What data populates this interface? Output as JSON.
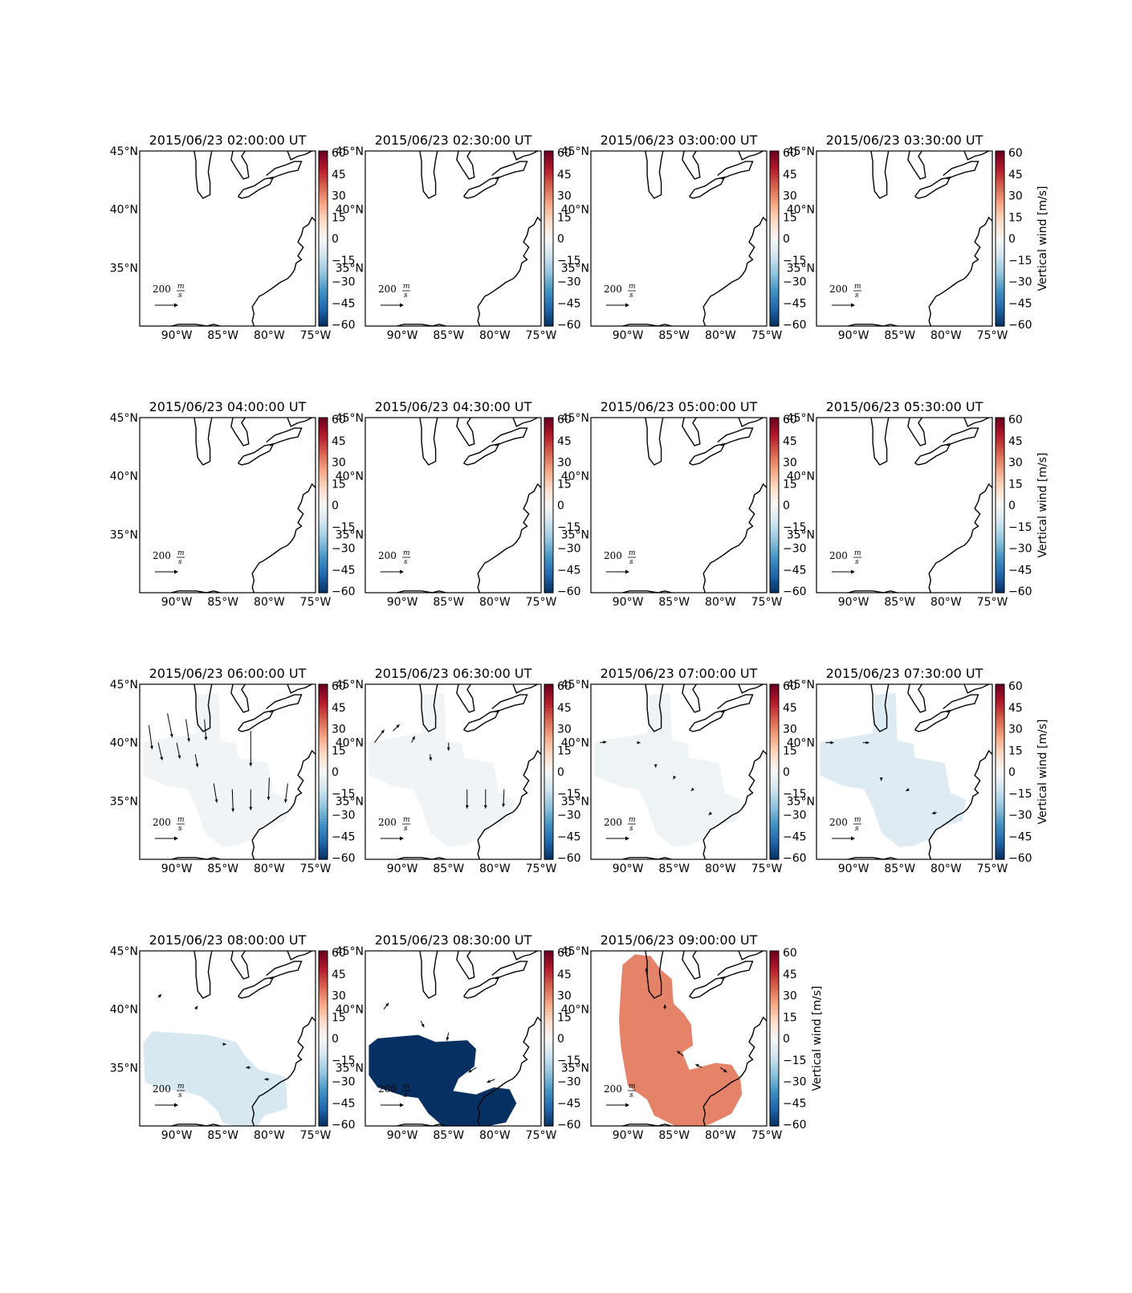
{
  "figure": {
    "panels": [
      {
        "title": "2015/06/23 02:00:00 UT",
        "show_cbar_label": false
      },
      {
        "title": "2015/06/23 02:30:00 UT",
        "show_cbar_label": false
      },
      {
        "title": "2015/06/23 03:00:00 UT",
        "show_cbar_label": false
      },
      {
        "title": "2015/06/23 03:30:00 UT",
        "show_cbar_label": true
      },
      {
        "title": "2015/06/23 04:00:00 UT",
        "show_cbar_label": false
      },
      {
        "title": "2015/06/23 04:30:00 UT",
        "show_cbar_label": false
      },
      {
        "title": "2015/06/23 05:00:00 UT",
        "show_cbar_label": false
      },
      {
        "title": "2015/06/23 05:30:00 UT",
        "show_cbar_label": true
      },
      {
        "title": "2015/06/23 06:00:00 UT",
        "show_cbar_label": false
      },
      {
        "title": "2015/06/23 06:30:00 UT",
        "show_cbar_label": false
      },
      {
        "title": "2015/06/23 07:00:00 UT",
        "show_cbar_label": false
      },
      {
        "title": "2015/06/23 07:30:00 UT",
        "show_cbar_label": true
      },
      {
        "title": "2015/06/23 08:00:00 UT",
        "show_cbar_label": false
      },
      {
        "title": "2015/06/23 08:30:00 UT",
        "show_cbar_label": false
      },
      {
        "title": "2015/06/23 09:00:00 UT",
        "show_cbar_label": true
      }
    ],
    "lon_ticks": [
      "90°W",
      "85°W",
      "80°W",
      "75°W"
    ],
    "lat_ticks": [
      "45°N",
      "40°N",
      "35°N"
    ],
    "colorbar": {
      "label": "Vertical wind [m/s]",
      "ticks": [
        "60",
        "45",
        "30",
        "15",
        "0",
        "−15",
        "−30",
        "−45",
        "−60"
      ],
      "range": [
        -60,
        60
      ],
      "colormap": "RdBu_r"
    },
    "quiver_key": {
      "number": "200",
      "num": "m",
      "den": "s"
    }
  },
  "chart_data": {
    "type": "heatmap",
    "title": "",
    "colorbar_label": "Vertical wind [m/s]",
    "lon_range": [
      -94,
      -75
    ],
    "lat_range": [
      30,
      45
    ],
    "clim": [
      -60,
      60
    ],
    "reference_vector": "200 m/s",
    "panels": [
      {
        "time": "2015/06/23 02:00:00 UT",
        "vertical_wind": null,
        "vectors": []
      },
      {
        "time": "2015/06/23 02:30:00 UT",
        "vertical_wind": null,
        "vectors": []
      },
      {
        "time": "2015/06/23 03:00:00 UT",
        "vertical_wind": null,
        "vectors": []
      },
      {
        "time": "2015/06/23 03:30:00 UT",
        "vertical_wind": null,
        "vectors": []
      },
      {
        "time": "2015/06/23 04:00:00 UT",
        "vertical_wind": null,
        "vectors": []
      },
      {
        "time": "2015/06/23 04:30:00 UT",
        "vertical_wind": null,
        "vectors": []
      },
      {
        "time": "2015/06/23 05:00:00 UT",
        "vertical_wind": null,
        "vectors": []
      },
      {
        "time": "2015/06/23 05:30:00 UT",
        "vertical_wind": null,
        "vectors": []
      },
      {
        "time": "2015/06/23 06:00:00 UT",
        "vertical_wind": -2,
        "region": "A",
        "vectors": [
          {
            "lon": -93,
            "lat": 41.5,
            "u": 20,
            "v": -150
          },
          {
            "lon": -91,
            "lat": 42.5,
            "u": 30,
            "v": -150
          },
          {
            "lon": -89,
            "lat": 42,
            "u": 20,
            "v": -140
          },
          {
            "lon": -87,
            "lat": 42,
            "u": 10,
            "v": -130
          },
          {
            "lon": -92,
            "lat": 40,
            "u": 25,
            "v": -110
          },
          {
            "lon": -90,
            "lat": 40,
            "u": 20,
            "v": -100
          },
          {
            "lon": -88,
            "lat": 39,
            "u": 15,
            "v": -80
          },
          {
            "lon": -86,
            "lat": 36.5,
            "u": 20,
            "v": -120
          },
          {
            "lon": -84,
            "lat": 36,
            "u": 5,
            "v": -140
          },
          {
            "lon": -82,
            "lat": 41,
            "u": 0,
            "v": -220
          },
          {
            "lon": -82,
            "lat": 36,
            "u": 0,
            "v": -130
          },
          {
            "lon": -80,
            "lat": 37,
            "u": -5,
            "v": -140
          },
          {
            "lon": -78,
            "lat": 36.5,
            "u": -15,
            "v": -120
          }
        ]
      },
      {
        "time": "2015/06/23 06:30:00 UT",
        "vertical_wind": -2,
        "region": "A",
        "vectors": [
          {
            "lon": -93,
            "lat": 40,
            "u": 60,
            "v": 80
          },
          {
            "lon": -91,
            "lat": 41,
            "u": 40,
            "v": 40
          },
          {
            "lon": -89,
            "lat": 40,
            "u": 20,
            "v": 40
          },
          {
            "lon": -87,
            "lat": 39,
            "u": 5,
            "v": -40
          },
          {
            "lon": -85,
            "lat": 40,
            "u": 0,
            "v": -50
          },
          {
            "lon": -83,
            "lat": 36,
            "u": 0,
            "v": -120
          },
          {
            "lon": -81,
            "lat": 36,
            "u": 0,
            "v": -120
          },
          {
            "lon": -79,
            "lat": 36,
            "u": -5,
            "v": -110
          }
        ]
      },
      {
        "time": "2015/06/23 07:00:00 UT",
        "vertical_wind": -3,
        "region": "A",
        "vectors": [
          {
            "lon": -93,
            "lat": 40,
            "u": 40,
            "v": 5
          },
          {
            "lon": -89,
            "lat": 40,
            "u": 20,
            "v": 0
          },
          {
            "lon": -87,
            "lat": 38,
            "u": 0,
            "v": -10
          },
          {
            "lon": -85,
            "lat": 37,
            "u": -5,
            "v": -10
          },
          {
            "lon": -83,
            "lat": 36,
            "u": -10,
            "v": -10
          },
          {
            "lon": -81,
            "lat": 34,
            "u": -15,
            "v": -15
          }
        ]
      },
      {
        "time": "2015/06/23 07:30:00 UT",
        "vertical_wind": -8,
        "region": "A",
        "vectors": [
          {
            "lon": -93,
            "lat": 40,
            "u": 50,
            "v": 0
          },
          {
            "lon": -89,
            "lat": 40,
            "u": 40,
            "v": 0
          },
          {
            "lon": -87,
            "lat": 37,
            "u": 0,
            "v": -20
          },
          {
            "lon": -84,
            "lat": 36,
            "u": -20,
            "v": -10
          },
          {
            "lon": -81,
            "lat": 34,
            "u": -30,
            "v": -5
          }
        ]
      },
      {
        "time": "2015/06/23 08:00:00 UT",
        "vertical_wind": -10,
        "region": "B",
        "vectors": [
          {
            "lon": -92,
            "lat": 41,
            "u": 20,
            "v": 20
          },
          {
            "lon": -88,
            "lat": 40,
            "u": 15,
            "v": 20
          },
          {
            "lon": -85,
            "lat": 37,
            "u": 20,
            "v": 0
          },
          {
            "lon": -82,
            "lat": 35,
            "u": -30,
            "v": 0
          },
          {
            "lon": -80,
            "lat": 34,
            "u": -30,
            "v": 0
          }
        ]
      },
      {
        "time": "2015/06/23 08:30:00 UT",
        "vertical_wind": -60,
        "region": "C",
        "vectors": [
          {
            "lon": -92,
            "lat": 40,
            "u": 30,
            "v": 40
          },
          {
            "lon": -88,
            "lat": 39,
            "u": 20,
            "v": -40
          },
          {
            "lon": -85,
            "lat": 38,
            "u": -10,
            "v": -50
          },
          {
            "lon": -82,
            "lat": 35,
            "u": -50,
            "v": -30
          },
          {
            "lon": -80,
            "lat": 34,
            "u": -50,
            "v": -20
          }
        ]
      },
      {
        "time": "2015/06/23 09:00:00 UT",
        "vertical_wind": 30,
        "region": "C",
        "vectors": [
          {
            "lon": -88,
            "lat": 43,
            "u": 0,
            "v": 40
          },
          {
            "lon": -86,
            "lat": 40,
            "u": 0,
            "v": 30
          },
          {
            "lon": -84,
            "lat": 36,
            "u": -40,
            "v": 30
          },
          {
            "lon": -82,
            "lat": 35,
            "u": -40,
            "v": 20
          },
          {
            "lon": -80,
            "lat": 35,
            "u": 40,
            "v": -30
          }
        ]
      }
    ]
  }
}
